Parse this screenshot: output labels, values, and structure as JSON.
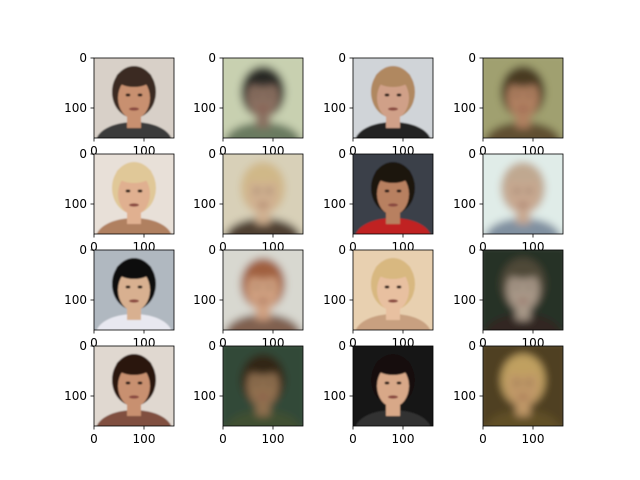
{
  "chart_data": {
    "type": "image_grid",
    "rows": 4,
    "cols": 4,
    "axis": {
      "xlim": [
        0,
        160
      ],
      "ylim": [
        160,
        0
      ],
      "xticks": [
        0,
        100
      ],
      "yticks": [
        0,
        100
      ],
      "xtick_labels": [
        "0",
        "100"
      ],
      "ytick_labels": [
        "0",
        "100"
      ]
    },
    "panels": [
      {
        "kind": "photo",
        "bg": "#d8d0c8",
        "hair": "#3a2a20",
        "skin": "#c89070",
        "cloth": "#3a3a3a"
      },
      {
        "kind": "blurry",
        "bg": "#c8d0b0",
        "hair": "#2a2a28",
        "skin": "#8a7060",
        "cloth": "#6a7a60"
      },
      {
        "kind": "photo",
        "bg": "#d0d4d8",
        "hair": "#b08860",
        "skin": "#d0a088",
        "cloth": "#202020"
      },
      {
        "kind": "blurry",
        "bg": "#a0a070",
        "hair": "#4a3a20",
        "skin": "#b08060",
        "cloth": "#605030"
      },
      {
        "kind": "photo",
        "bg": "#e8e0d8",
        "hair": "#e0c898",
        "skin": "#e0b090",
        "cloth": "#b08060"
      },
      {
        "kind": "blurry",
        "bg": "#d8d0b8",
        "hair": "#d0b888",
        "skin": "#d0b090",
        "cloth": "#504030"
      },
      {
        "kind": "photo",
        "bg": "#3a4048",
        "hair": "#1a1410",
        "skin": "#b88060",
        "cloth": "#c02020"
      },
      {
        "kind": "blurry",
        "bg": "#e0ece8",
        "hair": "#c0a890",
        "skin": "#c8a890",
        "cloth": "#8090a0"
      },
      {
        "kind": "photo",
        "bg": "#b0b8c0",
        "hair": "#101010",
        "skin": "#d8b090",
        "cloth": "#e8e8f0"
      },
      {
        "kind": "blurry",
        "bg": "#d8d8d0",
        "hair": "#a06040",
        "skin": "#d0a080",
        "cloth": "#806050"
      },
      {
        "kind": "photo",
        "bg": "#e8d0b0",
        "hair": "#d8b880",
        "skin": "#e8c0a0",
        "cloth": "#c8a080"
      },
      {
        "kind": "blurry",
        "bg": "#283028",
        "hair": "#504838",
        "skin": "#a89888",
        "cloth": "#302820"
      },
      {
        "kind": "photo",
        "bg": "#e0d8d0",
        "hair": "#2a1810",
        "skin": "#c89070",
        "cloth": "#805040"
      },
      {
        "kind": "blurry",
        "bg": "#304838",
        "hair": "#302818",
        "skin": "#907050",
        "cloth": "#405030"
      },
      {
        "kind": "photo",
        "bg": "#181818",
        "hair": "#141010",
        "skin": "#d8a888",
        "cloth": "#303030"
      },
      {
        "kind": "blurry",
        "bg": "#504020",
        "hair": "#c0a060",
        "skin": "#c09868",
        "cloth": "#605028"
      }
    ]
  }
}
